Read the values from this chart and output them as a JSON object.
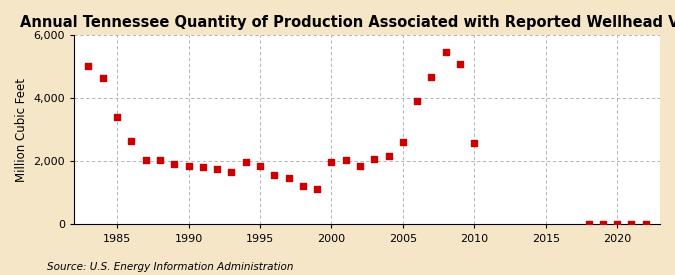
{
  "title": "Annual Tennessee Quantity of Production Associated with Reported Wellhead Value",
  "ylabel": "Million Cubic Feet",
  "source": "Source: U.S. Energy Information Administration",
  "background_color": "#f5e6c8",
  "plot_background_color": "#ffffff",
  "marker_color": "#cc0000",
  "marker_size": 16,
  "years": [
    1983,
    1984,
    1985,
    1986,
    1987,
    1988,
    1989,
    1990,
    1991,
    1992,
    1993,
    1994,
    1995,
    1996,
    1997,
    1998,
    1999,
    2000,
    2001,
    2002,
    2003,
    2004,
    2005,
    2006,
    2007,
    2008,
    2009,
    2010,
    2018,
    2019,
    2020,
    2021,
    2022
  ],
  "values": [
    5020,
    4650,
    3420,
    2640,
    2040,
    2060,
    1930,
    1870,
    1820,
    1770,
    1680,
    1970,
    1840,
    1580,
    1480,
    1230,
    1130,
    1980,
    2060,
    1840,
    2080,
    2170,
    2620,
    3920,
    4680,
    5480,
    5100,
    2600,
    25,
    10,
    15,
    10,
    15
  ],
  "xlim": [
    1982,
    2023
  ],
  "ylim": [
    0,
    6000
  ],
  "yticks": [
    0,
    2000,
    4000,
    6000
  ],
  "ytick_labels": [
    "0",
    "2,000",
    "4,000",
    "6,000"
  ],
  "xticks": [
    1985,
    1990,
    1995,
    2000,
    2005,
    2010,
    2015,
    2020
  ],
  "grid_color": "#aaaaaa",
  "title_fontsize": 10.5,
  "label_fontsize": 8.5,
  "tick_fontsize": 8,
  "source_fontsize": 7.5
}
